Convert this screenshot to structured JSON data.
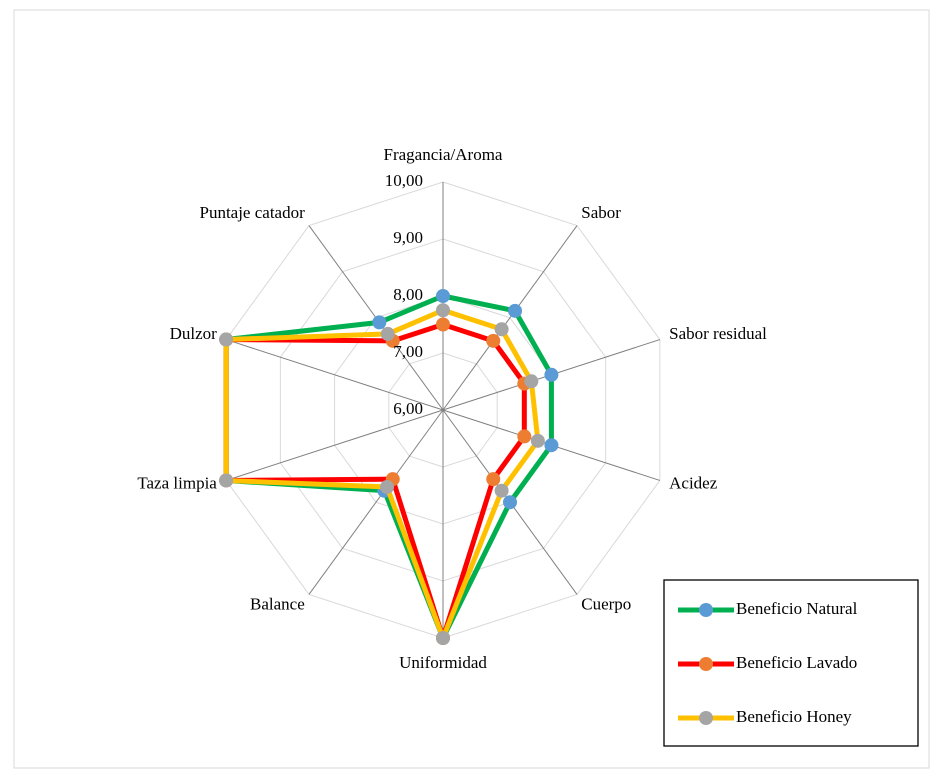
{
  "chart_data": {
    "type": "radar",
    "categories": [
      "Fragancia/Aroma",
      "Sabor",
      "Sabor residual",
      "Acidez",
      "Cuerpo",
      "Uniformidad",
      "Balance",
      "Taza limpia",
      "Dulzor",
      "Puntaje catador"
    ],
    "ylim": [
      6,
      10
    ],
    "yticks": [
      {
        "value": 6,
        "label": "6,00"
      },
      {
        "value": 7,
        "label": "7,00"
      },
      {
        "value": 8,
        "label": "8,00"
      },
      {
        "value": 9,
        "label": "9,00"
      },
      {
        "value": 10,
        "label": "10,00"
      }
    ],
    "grid": true,
    "legend": "bottom-right",
    "series": [
      {
        "name": "Beneficio Natural",
        "color": "#00b050",
        "marker_color": "#5b9bd5",
        "values": [
          8.0,
          8.15,
          8.0,
          8.0,
          8.0,
          10,
          7.75,
          10,
          10,
          7.9
        ]
      },
      {
        "name": "Beneficio Lavado",
        "color": "#ff0000",
        "marker_color": "#ed7d31",
        "values": [
          7.5,
          7.5,
          7.5,
          7.5,
          7.5,
          10,
          7.5,
          10,
          10,
          7.5
        ]
      },
      {
        "name": "Beneficio Honey",
        "color": "#ffc000",
        "marker_color": "#a5a5a5",
        "values": [
          7.75,
          7.75,
          7.63,
          7.75,
          7.75,
          10,
          7.67,
          10,
          10,
          7.65
        ]
      }
    ]
  }
}
